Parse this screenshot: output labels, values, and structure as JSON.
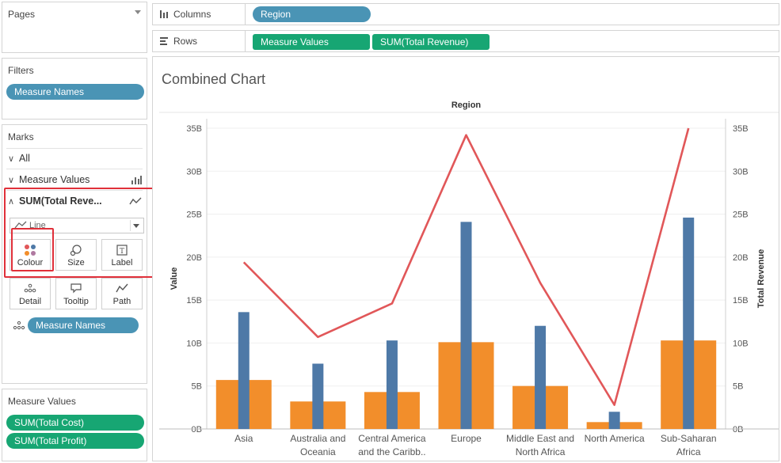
{
  "pages": {
    "title": "Pages"
  },
  "filters": {
    "title": "Filters",
    "pill": "Measure Names"
  },
  "marks": {
    "title": "Marks",
    "all": "All",
    "measure_values": "Measure Values",
    "sum_total_revenue": "SUM(Total Reve...",
    "mark_type": "Line",
    "buttons": {
      "colour": "Colour",
      "size": "Size",
      "label": "Label",
      "detail": "Detail",
      "tooltip": "Tooltip",
      "path": "Path"
    },
    "colour_pill": "Measure Names"
  },
  "measure_values_card": {
    "title": "Measure Values",
    "items": [
      "SUM(Total Cost)",
      "SUM(Total Profit)"
    ]
  },
  "shelves": {
    "columns_label": "Columns",
    "columns_pill": "Region",
    "rows_label": "Rows",
    "rows_pills": [
      "Measure Values",
      "SUM(Total Revenue)"
    ]
  },
  "icons": [
    "columns-icon",
    "rows-icon",
    "sparkline-icon",
    "line-icon",
    "colour-dots-icon",
    "size-icon",
    "label-icon",
    "detail-icon",
    "tooltip-icon",
    "path-icon"
  ],
  "colors": {
    "cost": "#f28e2b",
    "profit": "#4e79a7",
    "revenue": "#e15759",
    "pill_blue": "#4a94b5",
    "pill_green": "#17a673",
    "highlight": "#e0303a"
  },
  "chart_data": {
    "type": "bar",
    "title": "Combined Chart",
    "xlabel": "Region",
    "ylabel": "Value",
    "y2label": "Total Revenue",
    "ylim": [
      0,
      35
    ],
    "y2lim": [
      0,
      35
    ],
    "yticks": [
      "0B",
      "5B",
      "10B",
      "15B",
      "20B",
      "25B",
      "30B",
      "35B"
    ],
    "categories": [
      "Asia",
      "Australia and Oceania",
      "Central America and the Caribb..",
      "Europe",
      "Middle East and North Africa",
      "North America",
      "Sub-Saharan Africa"
    ],
    "category_lines": [
      [
        "Asia"
      ],
      [
        "Australia and",
        "Oceania"
      ],
      [
        "Central America",
        "and the Caribb.."
      ],
      [
        "Europe"
      ],
      [
        "Middle East and",
        "North Africa"
      ],
      [
        "North America"
      ],
      [
        "Sub-Saharan",
        "Africa"
      ]
    ],
    "series": [
      {
        "values": [
          5.7,
          3.2,
          4.3,
          10.1,
          5.0,
          0.8,
          10.3
        ],
        "type": "bar"
      },
      {
        "values": [
          13.6,
          7.6,
          10.3,
          24.1,
          12.0,
          2.0,
          24.6
        ],
        "type": "bar"
      },
      {
        "values": [
          19.4,
          10.7,
          14.6,
          34.2,
          17.0,
          2.8,
          35.0
        ],
        "type": "line"
      }
    ]
  }
}
